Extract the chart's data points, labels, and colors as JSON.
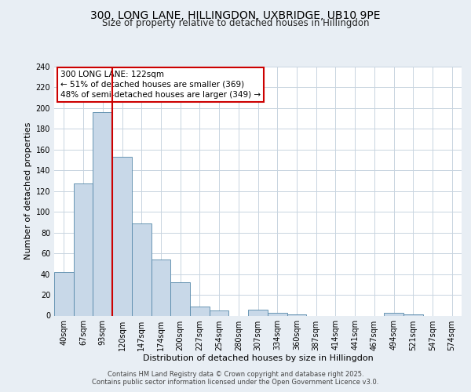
{
  "title": "300, LONG LANE, HILLINGDON, UXBRIDGE, UB10 9PE",
  "subtitle": "Size of property relative to detached houses in Hillingdon",
  "xlabel": "Distribution of detached houses by size in Hillingdon",
  "ylabel": "Number of detached properties",
  "bin_labels": [
    "40sqm",
    "67sqm",
    "93sqm",
    "120sqm",
    "147sqm",
    "174sqm",
    "200sqm",
    "227sqm",
    "254sqm",
    "280sqm",
    "307sqm",
    "334sqm",
    "360sqm",
    "387sqm",
    "414sqm",
    "441sqm",
    "467sqm",
    "494sqm",
    "521sqm",
    "547sqm",
    "574sqm"
  ],
  "bar_values": [
    42,
    127,
    196,
    153,
    89,
    54,
    32,
    9,
    5,
    0,
    6,
    3,
    1,
    0,
    0,
    0,
    0,
    3,
    1,
    0,
    0
  ],
  "bar_color": "#c8d8e8",
  "bar_edge_color": "#5588aa",
  "vline_x_index": 2,
  "vline_x_offset": 0.5,
  "vline_color": "#cc0000",
  "annotation_line1": "300 LONG LANE: 122sqm",
  "annotation_line2": "← 51% of detached houses are smaller (369)",
  "annotation_line3": "48% of semi-detached houses are larger (349) →",
  "annotation_box_color": "#ffffff",
  "annotation_box_edge": "#cc0000",
  "ylim": [
    0,
    240
  ],
  "yticks": [
    0,
    20,
    40,
    60,
    80,
    100,
    120,
    140,
    160,
    180,
    200,
    220,
    240
  ],
  "footer_line1": "Contains HM Land Registry data © Crown copyright and database right 2025.",
  "footer_line2": "Contains public sector information licensed under the Open Government Licence v3.0.",
  "bg_color": "#e8eef4",
  "plot_bg_color": "#ffffff",
  "grid_color": "#c8d4e0",
  "title_fontsize": 10,
  "subtitle_fontsize": 8.5,
  "ylabel_fontsize": 8,
  "xlabel_fontsize": 8,
  "tick_fontsize": 7,
  "annotation_fontsize": 7.5,
  "footer_fontsize": 6
}
